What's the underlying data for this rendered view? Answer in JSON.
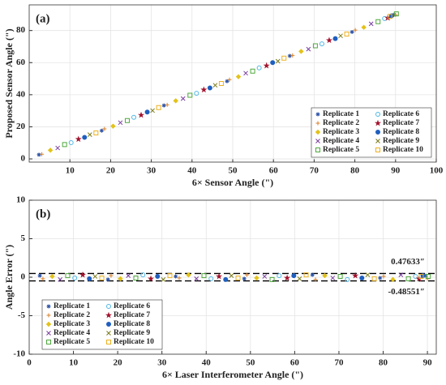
{
  "chart_data": [
    {
      "type": "scatter",
      "panel_label": "(a)",
      "x_label": "6× Sensor Angle (\")",
      "y_label": "Proposed Sensor Angle (\")",
      "xlim": [
        0,
        100
      ],
      "xticks": [
        10,
        20,
        30,
        40,
        50,
        60,
        70,
        80,
        90,
        100
      ],
      "ylim": [
        -2,
        96
      ],
      "yticks": [
        0,
        20,
        40,
        60,
        80
      ],
      "grid": true,
      "legend": "lower right",
      "series": [
        {
          "name": "Replicate 1",
          "color": "#2f55a8",
          "marker": "asterisk",
          "x": [
            2.4,
            17.8,
            33.1,
            48.6,
            64.0,
            79.3,
            89.6
          ],
          "values": [
            2.6,
            17.6,
            33.3,
            48.4,
            64.2,
            79.1,
            89.8
          ]
        },
        {
          "name": "Replicate 2",
          "color": "#d9822b",
          "marker": "plus",
          "x": [
            3.1,
            18.5,
            33.9,
            49.2,
            64.7,
            80.1,
            90.0
          ],
          "values": [
            2.9,
            18.7,
            33.7,
            49.4,
            64.5,
            80.3,
            89.8
          ]
        },
        {
          "name": "Replicate 3",
          "color": "#e3c21a",
          "marker": "diamond",
          "x": [
            5.2,
            20.6,
            36.0,
            51.4,
            66.8,
            82.2
          ],
          "values": [
            5.4,
            20.4,
            36.2,
            51.2,
            67.0,
            82.0
          ]
        },
        {
          "name": "Replicate 4",
          "color": "#7a3e9d",
          "marker": "x",
          "x": [
            7.0,
            22.4,
            37.8,
            53.2,
            68.6,
            84.0
          ],
          "values": [
            6.8,
            22.6,
            37.6,
            53.4,
            68.4,
            84.2
          ]
        },
        {
          "name": "Replicate 5",
          "color": "#4fa83d",
          "marker": "square",
          "x": [
            8.7,
            24.1,
            39.5,
            54.9,
            70.3,
            85.7,
            90.2
          ],
          "values": [
            8.9,
            23.9,
            39.7,
            54.7,
            70.5,
            85.5,
            90.4
          ]
        },
        {
          "name": "Replicate 6",
          "color": "#4fb7e6",
          "marker": "circle",
          "x": [
            10.3,
            25.7,
            41.1,
            56.5,
            71.9,
            87.3
          ],
          "values": [
            10.1,
            25.9,
            40.9,
            56.7,
            71.7,
            87.5
          ]
        },
        {
          "name": "Replicate 7",
          "color": "#a2142f",
          "marker": "star",
          "x": [
            12.1,
            27.5,
            42.9,
            58.3,
            73.7,
            88.1
          ],
          "values": [
            12.3,
            27.3,
            43.1,
            58.1,
            73.9,
            87.9
          ]
        },
        {
          "name": "Replicate 8",
          "color": "#1f5fbf",
          "marker": "dot",
          "x": [
            13.6,
            29.0,
            44.4,
            59.8,
            75.2,
            89.0
          ],
          "values": [
            13.4,
            29.2,
            44.2,
            60.0,
            75.0,
            89.2
          ]
        },
        {
          "name": "Replicate 9",
          "color": "#7a7a1a",
          "marker": "x",
          "x": [
            14.9,
            30.3,
            45.7,
            61.1,
            76.5
          ],
          "values": [
            15.1,
            30.1,
            45.9,
            60.9,
            76.7
          ]
        },
        {
          "name": "Replicate 10",
          "color": "#edb120",
          "marker": "square",
          "x": [
            16.4,
            31.8,
            47.2,
            62.6,
            78.0,
            88.6
          ],
          "values": [
            16.2,
            32.0,
            47.0,
            62.8,
            77.8,
            88.8
          ]
        }
      ]
    },
    {
      "type": "scatter",
      "panel_label": "(b)",
      "x_label": "6× Laser Interferometer Angle (\")",
      "y_label": "Angle Error (\")",
      "xlim": [
        0,
        92
      ],
      "xticks": [
        0,
        10,
        20,
        30,
        40,
        50,
        60,
        70,
        80,
        90
      ],
      "ylim": [
        -10,
        10
      ],
      "yticks": [
        -10,
        -5,
        0,
        5,
        10
      ],
      "grid": true,
      "legend": "lower left",
      "hlines": [
        {
          "value": 0.47633,
          "label": "0.47633″"
        },
        {
          "value": -0.48551,
          "label": "-0.48551″"
        }
      ],
      "series": [
        {
          "name": "Replicate 1",
          "color": "#2f55a8",
          "marker": "asterisk",
          "x": [
            2.4,
            17.8,
            33.1,
            48.6,
            64.0,
            79.3,
            89.6
          ],
          "values": [
            0.2,
            -0.3,
            0.1,
            -0.2,
            0.3,
            -0.1,
            0.2
          ]
        },
        {
          "name": "Replicate 2",
          "color": "#d9822b",
          "marker": "plus",
          "x": [
            3.1,
            18.5,
            33.9,
            49.2,
            64.7,
            80.1,
            90.0
          ],
          "values": [
            -0.2,
            0.2,
            -0.1,
            0.3,
            -0.3,
            0.1,
            -0.2
          ]
        },
        {
          "name": "Replicate 3",
          "color": "#e3c21a",
          "marker": "diamond",
          "x": [
            5.2,
            20.6,
            36.0,
            51.4,
            66.8,
            82.2
          ],
          "values": [
            0.1,
            -0.2,
            0.3,
            -0.1,
            0.2,
            -0.3
          ]
        },
        {
          "name": "Replicate 4",
          "color": "#7a3e9d",
          "marker": "x",
          "x": [
            7.0,
            22.4,
            37.8,
            53.2,
            68.6,
            84.0
          ],
          "values": [
            -0.3,
            0.2,
            -0.2,
            0.1,
            -0.1,
            0.3
          ]
        },
        {
          "name": "Replicate 5",
          "color": "#4fa83d",
          "marker": "square",
          "x": [
            8.7,
            24.1,
            39.5,
            54.9,
            70.3,
            85.7,
            90.2
          ],
          "values": [
            0.2,
            -0.1,
            0.2,
            -0.3,
            0.1,
            -0.2,
            0.1
          ]
        },
        {
          "name": "Replicate 6",
          "color": "#4fb7e6",
          "marker": "circle",
          "x": [
            10.3,
            25.7,
            41.1,
            56.5,
            71.9,
            87.3
          ],
          "values": [
            -0.1,
            0.3,
            -0.2,
            0.2,
            -0.3,
            0.1
          ]
        },
        {
          "name": "Replicate 7",
          "color": "#a2142f",
          "marker": "star",
          "x": [
            12.1,
            27.5,
            42.9,
            58.3,
            73.7,
            88.1
          ],
          "values": [
            0.3,
            -0.2,
            0.1,
            -0.1,
            0.2,
            -0.2
          ]
        },
        {
          "name": "Replicate 8",
          "color": "#1f5fbf",
          "marker": "dot",
          "x": [
            13.6,
            29.0,
            44.4,
            59.8,
            75.2,
            89.0
          ],
          "values": [
            -0.2,
            0.1,
            -0.3,
            0.2,
            -0.1,
            0.2
          ]
        },
        {
          "name": "Replicate 9",
          "color": "#7a7a1a",
          "marker": "x",
          "x": [
            14.9,
            30.3,
            45.7,
            61.1,
            76.5
          ],
          "values": [
            0.1,
            -0.3,
            0.2,
            -0.2,
            0.3
          ]
        },
        {
          "name": "Replicate 10",
          "color": "#edb120",
          "marker": "square",
          "x": [
            16.4,
            31.8,
            47.2,
            62.6,
            78.0,
            88.6
          ],
          "values": [
            -0.1,
            0.2,
            -0.1,
            0.3,
            -0.2,
            0.1
          ]
        }
      ]
    }
  ]
}
